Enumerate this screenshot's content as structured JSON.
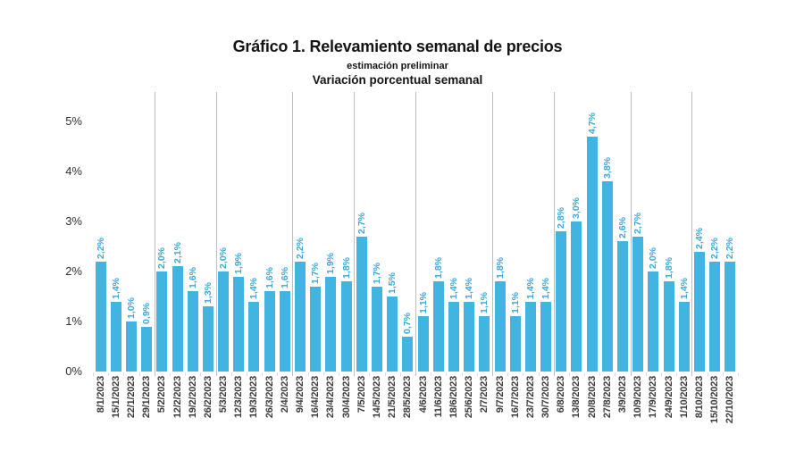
{
  "header": {
    "title": "Gráfico 1. Relevamiento semanal de precios",
    "subtitle1": "estimación preliminar",
    "subtitle2": "Variación porcentual semanal"
  },
  "chart_data": {
    "type": "bar",
    "title": "Gráfico 1. Relevamiento semanal de precios",
    "subtitle": "estimación preliminar",
    "axis_note": "Variación porcentual semanal",
    "legend": "none",
    "grid": "vertical group separator lines only, no horizontal gridlines",
    "ylim": [
      0,
      5.6
    ],
    "yticks": [
      "0%",
      "1%",
      "2%",
      "3%",
      "4%",
      "5%"
    ],
    "ytick_values": [
      0,
      1,
      2,
      3,
      4,
      5
    ],
    "categories": [
      "8/1/2023",
      "15/1/2023",
      "22/1/2023",
      "29/1/2023",
      "5/2/2023",
      "12/2/2023",
      "19/2/2023",
      "26/2/2023",
      "5/3/2023",
      "12/3/2023",
      "19/3/2023",
      "26/3/2023",
      "2/4/2023",
      "9/4/2023",
      "16/4/2023",
      "23/4/2023",
      "30/4/2023",
      "7/5/2023",
      "14/5/2023",
      "21/5/2023",
      "28/5/2023",
      "4/6/2023",
      "11/6/2023",
      "18/6/2023",
      "25/6/2023",
      "2/7/2023",
      "9/7/2023",
      "16/7/2023",
      "23/7/2023",
      "30/7/2023",
      "6/8/2023",
      "13/8/2023",
      "20/8/2023",
      "27/8/2023",
      "3/9/2023",
      "10/9/2023",
      "17/9/2023",
      "24/9/2023",
      "1/10/2023",
      "8/10/2023",
      "15/10/2023",
      "22/10/2023"
    ],
    "values": [
      2.2,
      1.4,
      1.0,
      0.9,
      2.0,
      2.1,
      1.6,
      1.3,
      2.0,
      1.9,
      1.4,
      1.6,
      1.6,
      2.2,
      1.7,
      1.9,
      1.8,
      2.7,
      1.7,
      1.5,
      0.7,
      1.1,
      1.8,
      1.4,
      1.4,
      1.1,
      1.8,
      1.1,
      1.4,
      1.4,
      2.8,
      3.0,
      4.7,
      3.8,
      2.6,
      2.7,
      2.0,
      1.8,
      1.4,
      2.4,
      2.2,
      2.2
    ],
    "value_labels": [
      "2,2%",
      "1,4%",
      "1,0%",
      "0,9%",
      "2,0%",
      "2,1%",
      "1,6%",
      "1,3%",
      "2,0%",
      "1,9%",
      "1,4%",
      "1,6%",
      "1,6%",
      "2,2%",
      "1,7%",
      "1,9%",
      "1,8%",
      "2,7%",
      "1,7%",
      "1,5%",
      "0,7%",
      "1,1%",
      "1,8%",
      "1,4%",
      "1,4%",
      "1,1%",
      "1,8%",
      "1,1%",
      "1,4%",
      "1,4%",
      "2,8%",
      "3,0%",
      "4,7%",
      "3,8%",
      "2,6%",
      "2,7%",
      "2,0%",
      "1,8%",
      "1,4%",
      "2,4%",
      "2,2%",
      "2,2%"
    ],
    "group_sizes": [
      4,
      4,
      5,
      4,
      4,
      5,
      4,
      5,
      4,
      3
    ],
    "colors": {
      "bar": "#41b4e2",
      "value_label": "#3ba7d6",
      "separator_line": "#bdbdbd",
      "axis_text": "#303030",
      "date_text": "#3b3b3b"
    }
  }
}
